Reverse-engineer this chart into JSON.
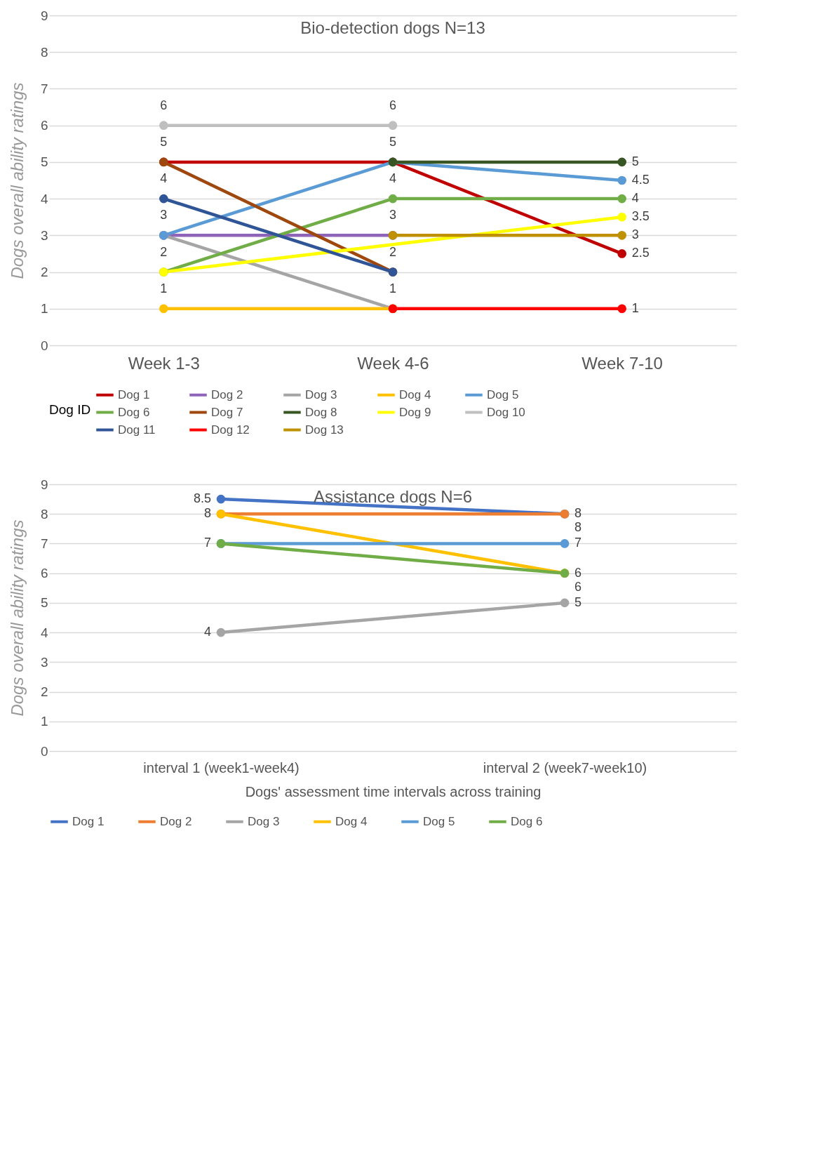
{
  "chart_data": [
    {
      "type": "line",
      "title": "Bio-detection dogs N=13",
      "ylabel": "Dogs overall ability ratings",
      "legend_title": "Dog ID",
      "categories": [
        "Week 1-3",
        "Week 4-6",
        "Week 7-10"
      ],
      "series": [
        {
          "name": "Dog 1",
          "color": "#c00000",
          "values": [
            5,
            5,
            2.5
          ],
          "value_labels": [
            "5",
            "5",
            "2.5"
          ]
        },
        {
          "name": "Dog 2",
          "color": "#8e63b8",
          "values": [
            3,
            3,
            null
          ],
          "value_labels": [
            "3",
            "3",
            null
          ]
        },
        {
          "name": "Dog 3",
          "color": "#a5a5a5",
          "values": [
            3,
            1,
            null
          ],
          "value_labels": [
            null,
            null,
            null
          ]
        },
        {
          "name": "Dog 4",
          "color": "#ffc000",
          "values": [
            1,
            1,
            null
          ],
          "value_labels": [
            "1",
            "1",
            null
          ]
        },
        {
          "name": "Dog 5",
          "color": "#5b9bd5",
          "values": [
            3,
            5,
            4.5
          ],
          "value_labels": [
            null,
            null,
            "4.5"
          ]
        },
        {
          "name": "Dog 6",
          "color": "#70ad47",
          "values": [
            2,
            4,
            4
          ],
          "value_labels": [
            "2",
            "4",
            "4"
          ]
        },
        {
          "name": "Dog 7",
          "color": "#9e480e",
          "values": [
            5,
            2,
            null
          ],
          "value_labels": [
            null,
            "2",
            null
          ]
        },
        {
          "name": "Dog 8",
          "color": "#375623",
          "values": [
            null,
            5,
            5
          ],
          "value_labels": [
            null,
            null,
            "5"
          ]
        },
        {
          "name": "Dog 9",
          "color": "#ffff00",
          "values": [
            2,
            null,
            3.5
          ],
          "value_labels": [
            null,
            null,
            "3.5"
          ]
        },
        {
          "name": "Dog 10",
          "color": "#bfbfbf",
          "values": [
            6,
            6,
            null
          ],
          "value_labels": [
            "6",
            "6",
            null
          ]
        },
        {
          "name": "Dog 11",
          "color": "#2f5597",
          "values": [
            4,
            2,
            null
          ],
          "value_labels": [
            "4",
            null,
            null
          ]
        },
        {
          "name": "Dog 12",
          "color": "#ff0000",
          "values": [
            null,
            1,
            1
          ],
          "value_labels": [
            null,
            null,
            "1"
          ]
        },
        {
          "name": "Dog 13",
          "color": "#bf9000",
          "values": [
            null,
            3,
            3
          ],
          "value_labels": [
            null,
            null,
            "3"
          ]
        }
      ],
      "ylim": [
        0,
        9
      ],
      "yticks": [
        0,
        1,
        2,
        3,
        4,
        5,
        6,
        7,
        8,
        9
      ],
      "grid": "y",
      "legend": "bottom",
      "marker": "circle",
      "line_style": "solid"
    },
    {
      "type": "line",
      "title": "Assistance dogs N=6",
      "ylabel": "Dogs overall ability ratings",
      "xlabel": "Dogs' assessment time intervals across training",
      "categories": [
        "interval 1 (week1-week4)",
        "interval 2 (week7-week10)"
      ],
      "series": [
        {
          "name": "Dog 1",
          "color": "#4472c4",
          "values": [
            8.5,
            8
          ],
          "value_labels": [
            "8.5",
            "8"
          ]
        },
        {
          "name": "Dog 2",
          "color": "#ed7d31",
          "values": [
            8,
            8
          ],
          "value_labels": [
            "8",
            "8"
          ]
        },
        {
          "name": "Dog 3",
          "color": "#a5a5a5",
          "values": [
            4,
            5
          ],
          "value_labels": [
            "4",
            "5"
          ]
        },
        {
          "name": "Dog 4",
          "color": "#ffc000",
          "values": [
            8,
            6
          ],
          "value_labels": [
            null,
            "6"
          ]
        },
        {
          "name": "Dog 5",
          "color": "#5b9bd5",
          "values": [
            7,
            7
          ],
          "value_labels": [
            "7",
            "7"
          ]
        },
        {
          "name": "Dog 6",
          "color": "#70ad47",
          "values": [
            7,
            6
          ],
          "value_labels": [
            null,
            "6"
          ]
        }
      ],
      "ylim": [
        0,
        9
      ],
      "yticks": [
        0,
        1,
        2,
        3,
        4,
        5,
        6,
        7,
        8,
        9
      ],
      "grid": "y",
      "legend": "bottom",
      "marker": "circle",
      "line_style": "solid"
    }
  ]
}
